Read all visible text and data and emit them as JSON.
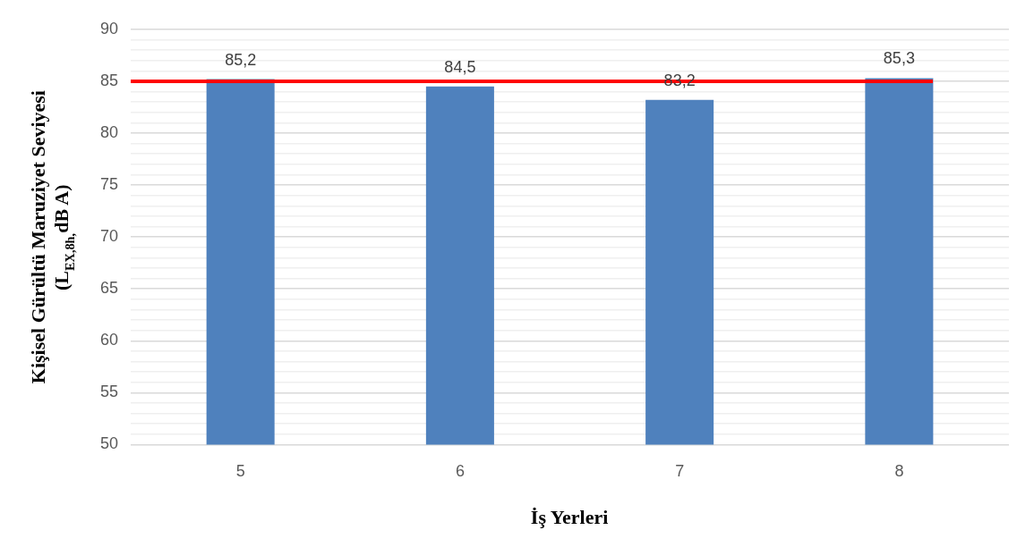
{
  "chart_data": {
    "type": "bar",
    "xlabel": "İş Yerleri",
    "ylabel": [
      "Kişisel Gürültü Maruziyet Seviyesi",
      "(L$_{EX,8h,}$dB A)"
    ],
    "categories": [
      "5",
      "6",
      "7",
      "8"
    ],
    "values": [
      85.2,
      84.5,
      83.2,
      85.3
    ],
    "color": "#4f81bd",
    "ylim": [
      50,
      90
    ],
    "yticks": [
      50,
      {
        "value": 51,
        "label": null
      },
      {
        "value": 52,
        "label": null
      },
      {
        "value": 53,
        "label": null
      },
      {
        "value": 54,
        "label": null
      },
      55,
      {
        "value": 56,
        "label": null
      },
      {
        "value": 57,
        "label": null
      },
      {
        "value": 58,
        "label": null
      },
      {
        "value": 59,
        "label": null
      },
      60,
      {
        "value": 61,
        "label": null
      },
      {
        "value": 62,
        "label": null
      },
      {
        "value": 63,
        "label": null
      },
      {
        "value": 64,
        "label": null
      },
      65,
      {
        "value": 66,
        "label": null
      },
      {
        "value": 67,
        "label": null
      },
      {
        "value": 68,
        "label": null
      },
      {
        "value": 69,
        "label": null
      },
      70,
      {
        "value": 71,
        "label": null
      },
      {
        "value": 72,
        "label": null
      },
      {
        "value": 73,
        "label": null
      },
      {
        "value": 74,
        "label": null
      },
      75,
      {
        "value": 76,
        "label": null
      },
      {
        "value": 77,
        "label": null
      },
      {
        "value": 78,
        "label": null
      },
      {
        "value": 79,
        "label": null
      },
      80,
      {
        "value": 81,
        "label": null
      },
      {
        "value": 82,
        "label": null
      },
      {
        "value": 83,
        "label": null
      },
      {
        "value": 84,
        "label": null
      },
      85,
      {
        "value": 86,
        "label": null
      },
      {
        "value": 87,
        "label": null
      },
      {
        "value": 88,
        "label": null
      },
      {
        "value": 89,
        "label": null
      },
      90
    ],
    "value_labels": [
      "85,2",
      "84,5",
      "83,2",
      "85,3"
    ],
    "grid": "y",
    "legend": false,
    "ref_lines": [
      {
        "axis": "y",
        "value": 85,
        "color": "#ff0000"
      }
    ]
  }
}
